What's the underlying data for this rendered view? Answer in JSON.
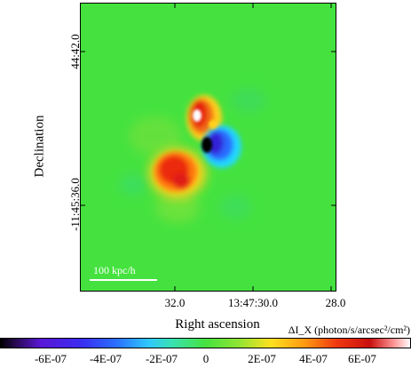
{
  "figure": {
    "y_axis": {
      "label": "Declination",
      "ticks": [
        "44:42.0",
        "-11:45:36.0"
      ]
    },
    "x_axis": {
      "label": "Right ascension",
      "ticks": [
        "32.0",
        "13:47:30.0",
        "28.0"
      ]
    },
    "scale_bar": {
      "label": "100 kpc/h"
    },
    "colorbar": {
      "title": "ΔI_X (photon/s/arcsec²/cm²)",
      "ticks": [
        "-6E-07",
        "-4E-07",
        "-2E-07",
        "0",
        "2E-07",
        "4E-07",
        "6E-07"
      ]
    },
    "colors": {
      "background_green": "#45e23f",
      "red_lobe": "#e8230f",
      "blue_lobe": "#1d4cf5"
    }
  }
}
